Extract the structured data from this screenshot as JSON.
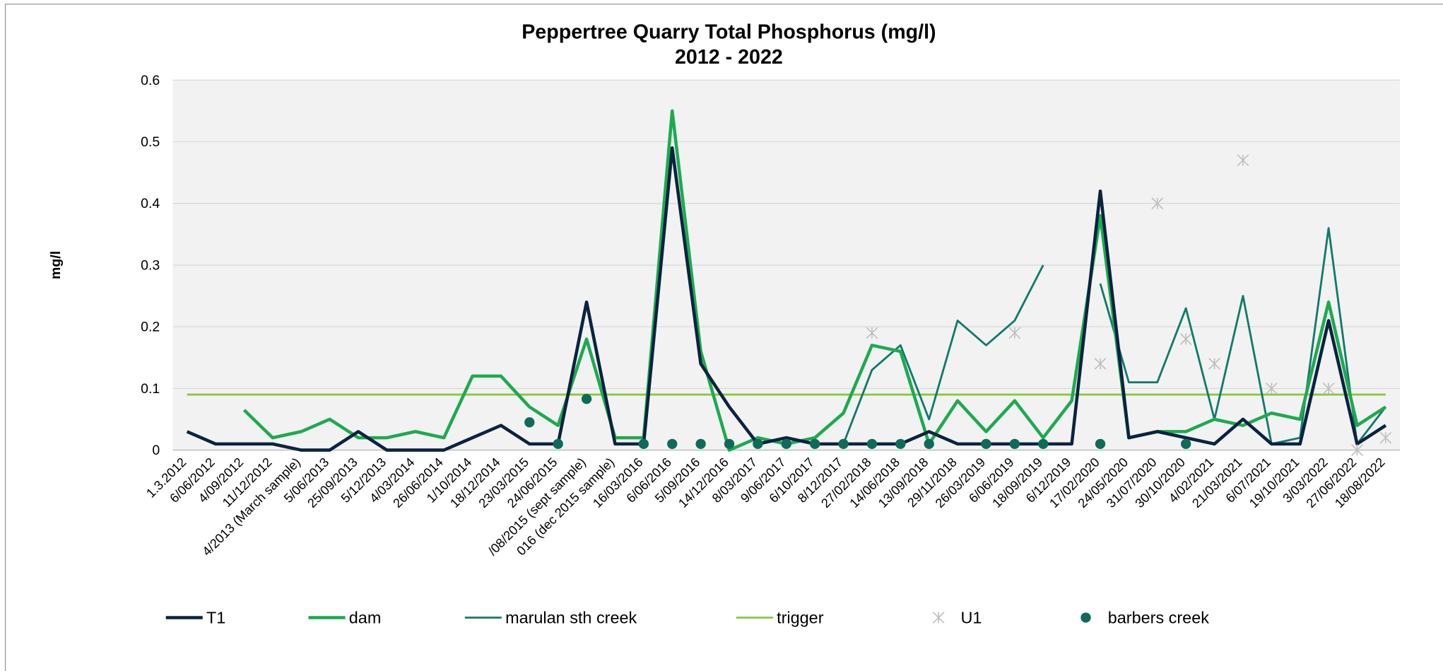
{
  "chart_data": {
    "type": "line",
    "title": "Peppertree Quarry Total Phosphorus (mg/l)",
    "subtitle": "2012 - 2022",
    "y_label": "mg/l",
    "categories": [
      "1.3.2012",
      "6/06/2012",
      "4/09/2012",
      "11/12/2012",
      "4/2013 (March sample)",
      "5/06/2013",
      "25/09/2013",
      "5/12/2013",
      "4/03/2014",
      "26/06/2014",
      "1/10/2014",
      "18/12/2014",
      "23/03/2015",
      "24/06/2015",
      "/08/2015 (sept sample)",
      "016 (dec 2015 sample)",
      "16/03/2016",
      "6/06/2016",
      "5/09/2016",
      "14/12/2016",
      "8/03/2017",
      "9/06/2017",
      "6/10/2017",
      "8/12/2017",
      "27/02/2018",
      "14/06/2018",
      "13/09/2018",
      "29/11/2018",
      "26/03/2019",
      "6/06/2019",
      "18/09/2019",
      "6/12/2019",
      "17/02/2020",
      "24/05/2020",
      "31/07/2020",
      "30/10/2020",
      "4/02/2021",
      "21/03/2021",
      "6/07/2021",
      "19/10/2021",
      "3/03/2022",
      "27/06/2022",
      "18/08/2022"
    ],
    "ylim": [
      0,
      0.6
    ],
    "yticks": [
      0,
      0.1,
      0.2,
      0.3,
      0.4,
      0.5,
      0.6
    ],
    "grid": true,
    "legend": "bottom",
    "series": [
      {
        "name": "T1",
        "color": "#0b2340",
        "style": "line",
        "values": [
          0.03,
          0.01,
          0.01,
          0.01,
          0,
          0,
          0.03,
          0,
          0,
          0,
          0.02,
          0.04,
          0.01,
          0.01,
          0.24,
          0.01,
          0.01,
          0.49,
          0.14,
          0.07,
          0.01,
          0.02,
          0.01,
          0.01,
          0.01,
          0.01,
          0.03,
          0.01,
          0.01,
          0.01,
          0.01,
          0.01,
          0.42,
          0.02,
          0.03,
          0.02,
          0.01,
          0.05,
          0.01,
          0.01,
          0.21,
          0.01,
          0.04
        ]
      },
      {
        "name": "dam",
        "color": "#1daa50",
        "style": "line",
        "values": [
          null,
          null,
          0.065,
          0.02,
          0.03,
          0.05,
          0.02,
          0.02,
          0.03,
          0.02,
          0.12,
          0.12,
          0.07,
          0.04,
          0.18,
          0.02,
          0.02,
          0.55,
          0.16,
          0,
          0.02,
          0.01,
          0.02,
          0.06,
          0.17,
          0.16,
          0.01,
          0.08,
          0.03,
          0.08,
          0.02,
          0.08,
          0.38,
          0.02,
          0.03,
          0.03,
          0.05,
          0.04,
          0.06,
          0.05,
          0.24,
          0.04,
          0.07
        ]
      },
      {
        "name": "marulan sth creek",
        "color": "#127a6a",
        "style": "thin",
        "values": [
          null,
          null,
          null,
          null,
          null,
          null,
          null,
          null,
          null,
          null,
          null,
          null,
          null,
          null,
          null,
          null,
          null,
          null,
          null,
          null,
          null,
          null,
          null,
          0.01,
          0.13,
          0.17,
          0.05,
          0.21,
          0.17,
          0.21,
          0.3,
          null,
          0.27,
          0.11,
          0.11,
          0.23,
          0.05,
          0.25,
          0.01,
          0.02,
          0.36,
          0.01,
          0.07
        ]
      },
      {
        "name": "trigger",
        "color": "#8cc63f",
        "style": "thin",
        "values": [
          0.09,
          0.09,
          0.09,
          0.09,
          0.09,
          0.09,
          0.09,
          0.09,
          0.09,
          0.09,
          0.09,
          0.09,
          0.09,
          0.09,
          0.09,
          0.09,
          0.09,
          0.09,
          0.09,
          0.09,
          0.09,
          0.09,
          0.09,
          0.09,
          0.09,
          0.09,
          0.09,
          0.09,
          0.09,
          0.09,
          0.09,
          0.09,
          0.09,
          0.09,
          0.09,
          0.09,
          0.09,
          0.09,
          0.09,
          0.09,
          0.09,
          0.09,
          0.09
        ]
      },
      {
        "name": "U1",
        "color": "#c0c0c0",
        "style": "cross",
        "values": [
          null,
          null,
          null,
          null,
          null,
          null,
          null,
          null,
          null,
          null,
          null,
          null,
          null,
          null,
          null,
          null,
          null,
          null,
          null,
          null,
          null,
          null,
          null,
          null,
          0.19,
          null,
          null,
          null,
          null,
          0.19,
          null,
          null,
          0.14,
          null,
          0.4,
          0.18,
          0.14,
          0.47,
          0.1,
          null,
          0.1,
          0,
          0.02
        ]
      },
      {
        "name": "barbers creek",
        "color": "#0e6b5a",
        "style": "dot",
        "values": [
          null,
          null,
          null,
          null,
          null,
          null,
          null,
          null,
          null,
          null,
          null,
          null,
          0.045,
          0.01,
          0.083,
          null,
          0.01,
          0.01,
          0.01,
          0.01,
          0.01,
          0.01,
          0.01,
          0.01,
          0.01,
          0.01,
          0.01,
          null,
          0.01,
          0.01,
          0.01,
          null,
          0.01,
          null,
          null,
          0.01,
          null,
          null,
          null,
          null,
          null,
          null,
          null
        ]
      }
    ]
  }
}
